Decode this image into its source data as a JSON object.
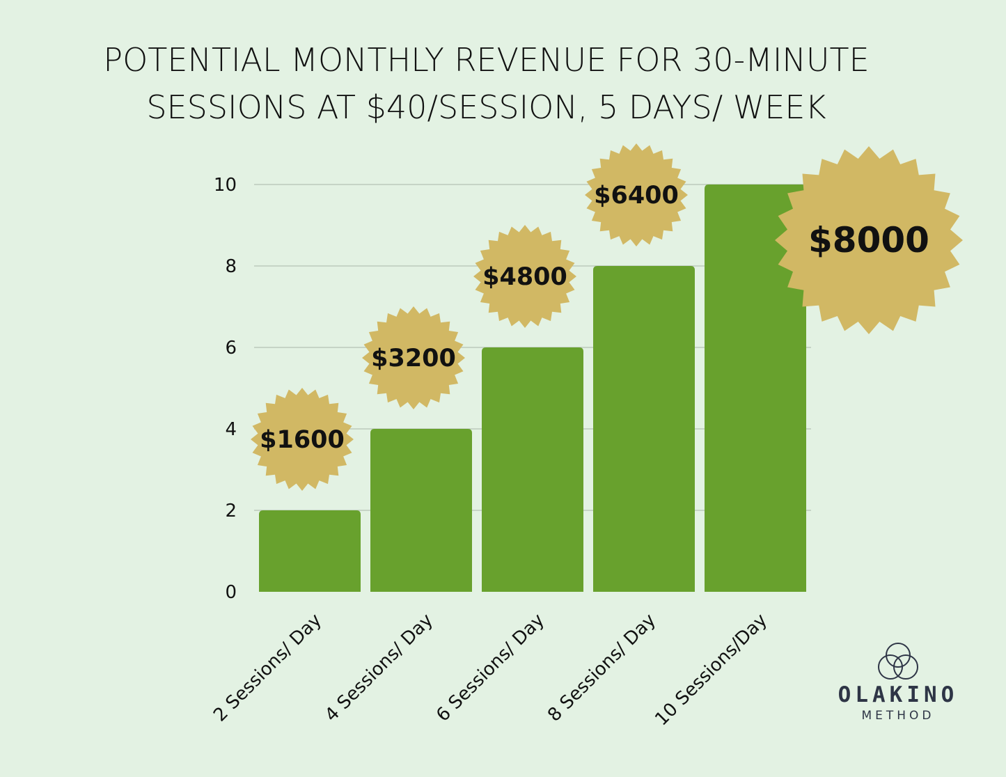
{
  "chart_data": {
    "type": "bar",
    "title": [
      "POTENTIAL MONTHLY REVENUE FOR 30-MINUTE",
      "SESSIONS AT $40/SESSION, 5 DAYS/ WEEK"
    ],
    "categories": [
      "2 Sessions/ Day",
      "4 Sessions/ Day",
      "6 Sessions/ Day",
      "8 Sessions/ Day",
      "10 Sessions/Day"
    ],
    "values": [
      2,
      4,
      6,
      8,
      10
    ],
    "data_labels": [
      "$1600",
      "$3200",
      "$4800",
      "$6400",
      "$8000"
    ],
    "ylim": [
      0,
      10
    ],
    "yticks": [
      0,
      2,
      4,
      6,
      8,
      10
    ],
    "grid": true,
    "legend": "none",
    "colors": {
      "bar": "#68a12d",
      "badge": "#d1b864",
      "grid": "#b5c2b5",
      "background": "#e3f2e3"
    }
  },
  "logo": {
    "word": "OLAKINO",
    "sub": "METHOD"
  }
}
